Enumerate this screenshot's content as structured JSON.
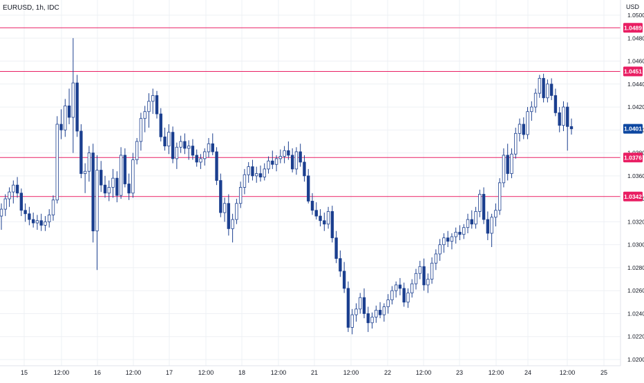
{
  "symbol_label": "EURUSD, 1h, IDC",
  "currency_label": "USD",
  "colors": {
    "up": "#1b3f8f",
    "down": "#1b3f8f",
    "level": "#e91e63",
    "last_price": "#0d47a1",
    "grid": "#eef0f4",
    "text": "#131722"
  },
  "chart_data": {
    "type": "candlestick",
    "timeframe": "1h",
    "y_axis": {
      "range": [
        1.021,
        1.0505
      ],
      "ticks": [
        "1.0500",
        "1.0480",
        "1.0460",
        "1.0440",
        "1.0420",
        "1.0400",
        "1.0380",
        "1.0360",
        "1.0340",
        "1.0320",
        "1.0300",
        "1.0280",
        "1.0260",
        "1.0240",
        "1.0220",
        "1.0200"
      ]
    },
    "x_axis": {
      "ticks": [
        "15",
        "12:00",
        "16",
        "12:00",
        "17",
        "12:00",
        "18",
        "12:00",
        "21",
        "12:00",
        "22",
        "12:00",
        "23",
        "12:00",
        "24",
        "12:00",
        "25"
      ]
    },
    "horizontal_levels": [
      {
        "price": 1.0489,
        "label": "1.0489"
      },
      {
        "price": 1.0451,
        "label": "1.0451"
      },
      {
        "price": 1.0376,
        "label": "1.0376"
      },
      {
        "price": 1.0342,
        "label": "1.0342"
      }
    ],
    "last_price": {
      "price": 1.0401,
      "label": "1.0401"
    },
    "candles": [
      [
        1.0325,
        1.0336,
        1.0313,
        1.0331
      ],
      [
        1.0331,
        1.0344,
        1.0325,
        1.034
      ],
      [
        1.034,
        1.035,
        1.0333,
        1.0346
      ],
      [
        1.0346,
        1.0356,
        1.0336,
        1.0352
      ],
      [
        1.0352,
        1.0359,
        1.0341,
        1.0345
      ],
      [
        1.0345,
        1.0349,
        1.0325,
        1.033
      ],
      [
        1.033,
        1.0336,
        1.032,
        1.0327
      ],
      [
        1.0327,
        1.0333,
        1.0317,
        1.0322
      ],
      [
        1.0322,
        1.0328,
        1.0315,
        1.0319
      ],
      [
        1.0319,
        1.0326,
        1.0313,
        1.0321
      ],
      [
        1.0321,
        1.0327,
        1.0312,
        1.0317
      ],
      [
        1.0317,
        1.0325,
        1.0312,
        1.032
      ],
      [
        1.032,
        1.0331,
        1.0315,
        1.0326
      ],
      [
        1.0326,
        1.0343,
        1.0321,
        1.0339
      ],
      [
        1.0339,
        1.0412,
        1.0336,
        1.0405
      ],
      [
        1.0405,
        1.0418,
        1.0392,
        1.04
      ],
      [
        1.04,
        1.0427,
        1.0394,
        1.0421
      ],
      [
        1.0421,
        1.0436,
        1.0405,
        1.0411
      ],
      [
        1.0411,
        1.048,
        1.038,
        1.0441
      ],
      [
        1.0441,
        1.0448,
        1.0394,
        1.0399
      ],
      [
        1.0399,
        1.0405,
        1.0358,
        1.0362
      ],
      [
        1.0362,
        1.0371,
        1.0345,
        1.0364
      ],
      [
        1.0364,
        1.0386,
        1.0355,
        1.038
      ],
      [
        1.038,
        1.0388,
        1.0302,
        1.0312
      ],
      [
        1.0312,
        1.0378,
        1.0278,
        1.0365
      ],
      [
        1.0365,
        1.0373,
        1.0346,
        1.0352
      ],
      [
        1.0352,
        1.036,
        1.0341,
        1.0345
      ],
      [
        1.0345,
        1.0356,
        1.0338,
        1.035
      ],
      [
        1.035,
        1.0366,
        1.0341,
        1.0358
      ],
      [
        1.0358,
        1.0364,
        1.0337,
        1.0343
      ],
      [
        1.0343,
        1.0385,
        1.034,
        1.0378
      ],
      [
        1.0378,
        1.0384,
        1.035,
        1.0353
      ],
      [
        1.0353,
        1.0362,
        1.0339,
        1.0345
      ],
      [
        1.0345,
        1.038,
        1.0341,
        1.0374
      ],
      [
        1.0374,
        1.0393,
        1.037,
        1.039
      ],
      [
        1.039,
        1.0415,
        1.0382,
        1.041
      ],
      [
        1.041,
        1.0421,
        1.0398,
        1.0416
      ],
      [
        1.0416,
        1.0432,
        1.0402,
        1.0425
      ],
      [
        1.0425,
        1.0436,
        1.0414,
        1.043
      ],
      [
        1.043,
        1.0434,
        1.041,
        1.0414
      ],
      [
        1.0414,
        1.0419,
        1.039,
        1.0394
      ],
      [
        1.0394,
        1.0402,
        1.0382,
        1.0386
      ],
      [
        1.0386,
        1.0405,
        1.0379,
        1.0398
      ],
      [
        1.0398,
        1.0403,
        1.0371,
        1.0375
      ],
      [
        1.0375,
        1.0389,
        1.0366,
        1.0385
      ],
      [
        1.0385,
        1.0395,
        1.038,
        1.039
      ],
      [
        1.039,
        1.0397,
        1.0379,
        1.0384
      ],
      [
        1.0384,
        1.0391,
        1.0374,
        1.0386
      ],
      [
        1.0386,
        1.0392,
        1.0374,
        1.0378
      ],
      [
        1.0378,
        1.0383,
        1.0368,
        1.0372
      ],
      [
        1.0372,
        1.0379,
        1.0366,
        1.0375
      ],
      [
        1.0375,
        1.0384,
        1.0369,
        1.0381
      ],
      [
        1.0381,
        1.0393,
        1.0376,
        1.0388
      ],
      [
        1.0388,
        1.0397,
        1.0378,
        1.0381
      ],
      [
        1.0381,
        1.0385,
        1.0352,
        1.0356
      ],
      [
        1.0356,
        1.0362,
        1.0324,
        1.0328
      ],
      [
        1.0328,
        1.0341,
        1.032,
        1.0336
      ],
      [
        1.0336,
        1.0344,
        1.0308,
        1.0314
      ],
      [
        1.0314,
        1.0327,
        1.0302,
        1.0322
      ],
      [
        1.0322,
        1.034,
        1.0318,
        1.0336
      ],
      [
        1.0336,
        1.0355,
        1.0332,
        1.035
      ],
      [
        1.035,
        1.0366,
        1.0344,
        1.0361
      ],
      [
        1.0361,
        1.0372,
        1.0354,
        1.0368
      ],
      [
        1.0368,
        1.0374,
        1.0356,
        1.036
      ],
      [
        1.036,
        1.0368,
        1.0354,
        1.0362
      ],
      [
        1.0362,
        1.0369,
        1.0355,
        1.0359
      ],
      [
        1.0359,
        1.0371,
        1.0356,
        1.0366
      ],
      [
        1.0366,
        1.0377,
        1.0362,
        1.0373
      ],
      [
        1.0373,
        1.0382,
        1.0366,
        1.037
      ],
      [
        1.037,
        1.0378,
        1.0364,
        1.0375
      ],
      [
        1.0375,
        1.0383,
        1.0371,
        1.0377
      ],
      [
        1.0377,
        1.0386,
        1.0371,
        1.0382
      ],
      [
        1.0382,
        1.039,
        1.0374,
        1.0378
      ],
      [
        1.0378,
        1.0384,
        1.0363,
        1.0366
      ],
      [
        1.0366,
        1.0385,
        1.0361,
        1.0381
      ],
      [
        1.0381,
        1.0388,
        1.0368,
        1.0372
      ],
      [
        1.0372,
        1.0378,
        1.0355,
        1.036
      ],
      [
        1.036,
        1.0366,
        1.0336,
        1.0338
      ],
      [
        1.0338,
        1.0345,
        1.0326,
        1.033
      ],
      [
        1.033,
        1.0337,
        1.0322,
        1.0325
      ],
      [
        1.0325,
        1.0331,
        1.0316,
        1.0321
      ],
      [
        1.0321,
        1.0328,
        1.0312,
        1.0318
      ],
      [
        1.0318,
        1.0333,
        1.0314,
        1.0329
      ],
      [
        1.0329,
        1.0334,
        1.0302,
        1.0306
      ],
      [
        1.0306,
        1.0312,
        1.0284,
        1.0288
      ],
      [
        1.0288,
        1.0295,
        1.0272,
        1.0277
      ],
      [
        1.0277,
        1.0285,
        1.0258,
        1.0262
      ],
      [
        1.0262,
        1.0268,
        1.0224,
        1.0228
      ],
      [
        1.0228,
        1.0244,
        1.0222,
        1.0239
      ],
      [
        1.0239,
        1.0249,
        1.0233,
        1.0244
      ],
      [
        1.0244,
        1.0258,
        1.024,
        1.0254
      ],
      [
        1.0254,
        1.0262,
        1.0236,
        1.024
      ],
      [
        1.024,
        1.0246,
        1.0224,
        1.0232
      ],
      [
        1.0232,
        1.0241,
        1.0227,
        1.0237
      ],
      [
        1.0237,
        1.0247,
        1.0232,
        1.0243
      ],
      [
        1.0243,
        1.025,
        1.0236,
        1.0239
      ],
      [
        1.0239,
        1.0249,
        1.0233,
        1.0246
      ],
      [
        1.0246,
        1.0257,
        1.024,
        1.0252
      ],
      [
        1.0252,
        1.0264,
        1.0248,
        1.026
      ],
      [
        1.026,
        1.0268,
        1.0254,
        1.0265
      ],
      [
        1.0265,
        1.0271,
        1.0256,
        1.0262
      ],
      [
        1.0262,
        1.0267,
        1.0246,
        1.025
      ],
      [
        1.025,
        1.0262,
        1.0245,
        1.0258
      ],
      [
        1.0258,
        1.027,
        1.0254,
        1.0266
      ],
      [
        1.0266,
        1.0279,
        1.0261,
        1.0275
      ],
      [
        1.0275,
        1.0286,
        1.027,
        1.0281
      ],
      [
        1.0281,
        1.0288,
        1.026,
        1.0265
      ],
      [
        1.0265,
        1.0275,
        1.0258,
        1.027
      ],
      [
        1.027,
        1.0289,
        1.0266,
        1.0284
      ],
      [
        1.0284,
        1.0296,
        1.0278,
        1.0292
      ],
      [
        1.0292,
        1.0305,
        1.0286,
        1.03
      ],
      [
        1.03,
        1.031,
        1.0293,
        1.0306
      ],
      [
        1.0306,
        1.0312,
        1.0298,
        1.0303
      ],
      [
        1.0303,
        1.031,
        1.0296,
        1.0307
      ],
      [
        1.0307,
        1.0315,
        1.0301,
        1.0311
      ],
      [
        1.0311,
        1.0317,
        1.0304,
        1.0309
      ],
      [
        1.0309,
        1.0318,
        1.0305,
        1.0315
      ],
      [
        1.0315,
        1.0327,
        1.031,
        1.0322
      ],
      [
        1.0322,
        1.033,
        1.0314,
        1.0318
      ],
      [
        1.0318,
        1.0333,
        1.0314,
        1.0329
      ],
      [
        1.0329,
        1.0348,
        1.0324,
        1.0344
      ],
      [
        1.0344,
        1.035,
        1.0318,
        1.0322
      ],
      [
        1.0322,
        1.0329,
        1.0304,
        1.031
      ],
      [
        1.031,
        1.0327,
        1.0298,
        1.0324
      ],
      [
        1.0324,
        1.0336,
        1.0316,
        1.033
      ],
      [
        1.033,
        1.0358,
        1.0326,
        1.0354
      ],
      [
        1.0354,
        1.0384,
        1.035,
        1.0378
      ],
      [
        1.0378,
        1.0388,
        1.0356,
        1.0362
      ],
      [
        1.0362,
        1.0384,
        1.0358,
        1.0379
      ],
      [
        1.0379,
        1.0402,
        1.0375,
        1.0397
      ],
      [
        1.0397,
        1.041,
        1.039,
        1.0405
      ],
      [
        1.0405,
        1.0411,
        1.0392,
        1.0396
      ],
      [
        1.0396,
        1.042,
        1.0392,
        1.0416
      ],
      [
        1.0416,
        1.0425,
        1.0408,
        1.042
      ],
      [
        1.042,
        1.0436,
        1.0415,
        1.0432
      ],
      [
        1.0432,
        1.0448,
        1.0428,
        1.0445
      ],
      [
        1.0445,
        1.0449,
        1.0424,
        1.0428
      ],
      [
        1.0428,
        1.0444,
        1.0424,
        1.044
      ],
      [
        1.044,
        1.0445,
        1.0426,
        1.043
      ],
      [
        1.043,
        1.0436,
        1.0412,
        1.0415
      ],
      [
        1.0415,
        1.042,
        1.0398,
        1.0404
      ],
      [
        1.0404,
        1.0425,
        1.0399,
        1.042
      ],
      [
        1.042,
        1.0424,
        1.0382,
        1.0403
      ],
      [
        1.0403,
        1.041,
        1.0396,
        1.0401
      ]
    ]
  }
}
